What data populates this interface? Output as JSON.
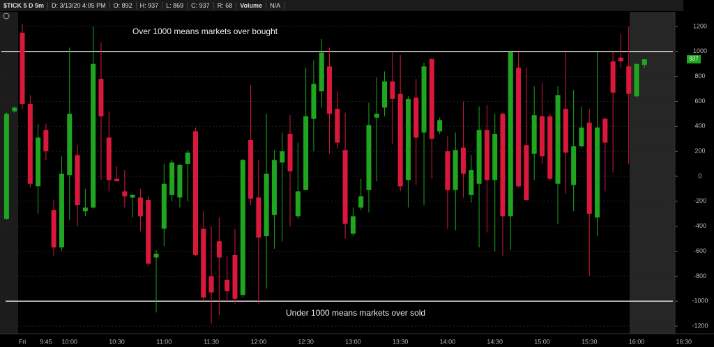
{
  "header": {
    "symbol": "$TICK 5 D 5m",
    "date": "D: 3/13/20 4:05 PM",
    "open": "O: 892",
    "high": "H: 937",
    "low": "L: 869",
    "close": "C: 937",
    "range": "R: 68",
    "volume": "Volume",
    "volume_value": "N/A"
  },
  "chart_data": {
    "type": "candlestick",
    "categories": [
      null,
      null,
      "Fri",
      null,
      null,
      "9:45",
      null,
      null,
      "10:00",
      null,
      null,
      null,
      null,
      null,
      "10:30",
      null,
      null,
      null,
      null,
      null,
      "11:00",
      null,
      null,
      null,
      null,
      null,
      "11:30",
      null,
      null,
      null,
      null,
      null,
      "12:00",
      null,
      null,
      null,
      null,
      null,
      "12:30",
      null,
      null,
      null,
      null,
      null,
      "13:00",
      null,
      null,
      null,
      null,
      null,
      "13:30",
      null,
      null,
      null,
      null,
      null,
      "14:00",
      null,
      null,
      null,
      null,
      null,
      "14:30",
      null,
      null,
      null,
      null,
      null,
      "15:00",
      null,
      null,
      null,
      null,
      null,
      "15:30",
      null,
      null,
      null,
      null,
      null,
      "16:00",
      null,
      null,
      null,
      null,
      null,
      "16:30"
    ],
    "open": [
      -340,
      520,
      1150,
      580,
      -80,
      370,
      -270,
      -570,
      10,
      170,
      -280,
      -250,
      780,
      310,
      -20,
      -120,
      -170,
      -170,
      -190,
      -650,
      -420,
      -150,
      -170,
      100,
      360,
      -420,
      -800,
      -520,
      -830,
      -630,
      -950,
      290,
      -170,
      -480,
      -310,
      110,
      340,
      -320,
      -110,
      460,
      680,
      880,
      540,
      210,
      -460,
      -250,
      -110,
      470,
      550,
      760,
      660,
      -30,
      630,
      350,
      940,
      360,
      200,
      -110,
      230,
      -150,
      -60,
      370,
      -30,
      500,
      -320,
      870,
      250,
      180,
      480,
      480,
      -60,
      540,
      -70,
      240,
      430,
      -330,
      460,
      920,
      950,
      880,
      640,
      892,
      null,
      null,
      null,
      null,
      null
    ],
    "high": [
      510,
      560,
      1220,
      650,
      420,
      420,
      -190,
      160,
      1030,
      250,
      -100,
      1200,
      1070,
      520,
      80,
      50,
      -140,
      -100,
      -160,
      -590,
      100,
      130,
      100,
      210,
      390,
      -280,
      -400,
      -330,
      -640,
      -420,
      140,
      730,
      130,
      500,
      210,
      350,
      490,
      270,
      870,
      930,
      1100,
      1030,
      680,
      510,
      -250,
      -20,
      590,
      790,
      840,
      1000,
      970,
      640,
      780,
      910,
      940,
      470,
      320,
      350,
      600,
      170,
      560,
      570,
      500,
      510,
      1000,
      1000,
      870,
      720,
      750,
      500,
      720,
      990,
      690,
      560,
      540,
      1000,
      470,
      1000,
      1140,
      1200,
      900,
      937,
      null,
      null,
      null,
      null,
      null
    ],
    "low": [
      -350,
      510,
      540,
      -90,
      -300,
      130,
      -640,
      -600,
      -350,
      -400,
      -320,
      -260,
      -30,
      -120,
      -40,
      -250,
      -330,
      -440,
      -720,
      -1090,
      -560,
      -200,
      -250,
      -200,
      -640,
      -1000,
      -1180,
      -1110,
      -1000,
      -1020,
      -970,
      -230,
      -1020,
      -900,
      -580,
      -520,
      -400,
      -340,
      -110,
      200,
      550,
      180,
      220,
      -500,
      -480,
      -270,
      -290,
      -40,
      480,
      260,
      -120,
      -250,
      -70,
      -230,
      -20,
      340,
      -420,
      -430,
      -170,
      -210,
      -570,
      -450,
      -600,
      -640,
      -590,
      -90,
      -200,
      -30,
      100,
      -30,
      -380,
      -140,
      -280,
      230,
      -800,
      -480,
      -120,
      30,
      870,
      100,
      630,
      869,
      null,
      null,
      null,
      null,
      null
    ],
    "close": [
      500,
      550,
      580,
      -60,
      310,
      200,
      -570,
      20,
      500,
      -230,
      -250,
      900,
      480,
      -30,
      -40,
      -160,
      -150,
      -320,
      -700,
      -620,
      -60,
      110,
      90,
      190,
      -630,
      -970,
      -930,
      -650,
      -920,
      -980,
      130,
      -180,
      -490,
      20,
      130,
      200,
      40,
      -120,
      480,
      740,
      990,
      500,
      270,
      -380,
      -320,
      -160,
      410,
      500,
      760,
      620,
      -80,
      620,
      310,
      880,
      300,
      450,
      -110,
      210,
      20,
      50,
      370,
      -30,
      340,
      -320,
      1000,
      -80,
      -190,
      490,
      160,
      -20,
      650,
      190,
      240,
      390,
      -300,
      390,
      270,
      670,
      920,
      660,
      900,
      937,
      null,
      null,
      null,
      null,
      null
    ],
    "up_color": "#1fa51f",
    "down_color": "#d9183b",
    "ylim": [
      -1300,
      1300
    ],
    "yticks": [
      -1200,
      -1000,
      -800,
      -600,
      -400,
      -200,
      0,
      200,
      400,
      600,
      800,
      1000,
      1200
    ],
    "grid": true,
    "hlines": [
      1000,
      -1000
    ],
    "annotations": [
      "Over 1000 means markets over bought",
      "Under 1000 means markets over sold"
    ]
  }
}
